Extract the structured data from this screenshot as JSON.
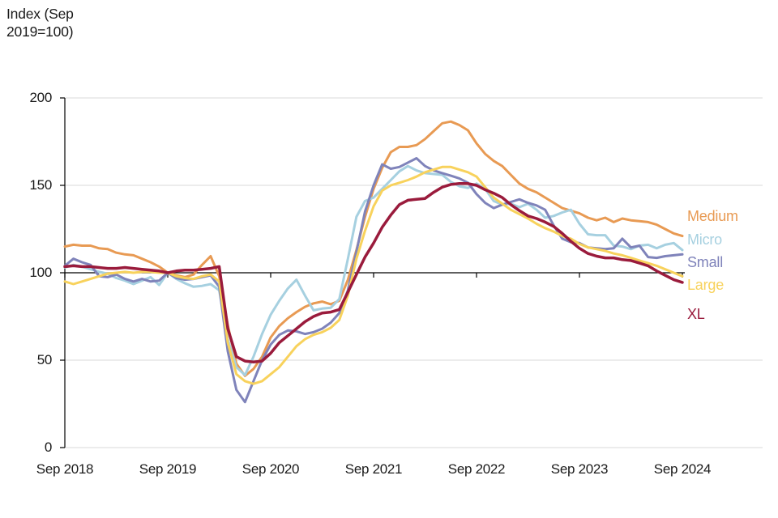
{
  "chart_data": {
    "type": "line",
    "title": "Index (Sep 2019=100)",
    "x_axis": {
      "tick_labels": [
        "Sep 2018",
        "Sep 2019",
        "Sep 2020",
        "Sep 2021",
        "Sep 2022",
        "Sep 2023",
        "Sep 2024"
      ],
      "start": "Sep 2018",
      "end": "Sep 2024",
      "step": "monthly",
      "points_per_series": 73
    },
    "y_axis": {
      "tick_labels": [
        "0",
        "50",
        "100",
        "150",
        "200"
      ],
      "ticks": [
        0,
        50,
        100,
        150,
        200
      ],
      "ylim": [
        0,
        200
      ],
      "baseline": 100
    },
    "grid": {
      "horizontal_gridlines_at": [
        0,
        50,
        150,
        200
      ],
      "black_baseline_at": 100
    },
    "legend_position": "direct labels at right end of lines",
    "series": [
      {
        "name": "Medium",
        "color": "#E89A53",
        "values": [
          115,
          116,
          115.5,
          115.5,
          114,
          113.5,
          111.5,
          110.5,
          110,
          108,
          106,
          103.5,
          100,
          98.5,
          97.5,
          99,
          104.5,
          109.5,
          98,
          70,
          48,
          41,
          45,
          52,
          63,
          69.5,
          74,
          77.5,
          80.5,
          82.5,
          83.5,
          82,
          84,
          96,
          113,
          132,
          148,
          160,
          169,
          172,
          172,
          173,
          176.5,
          181,
          185.5,
          186.5,
          184.5,
          181.5,
          174,
          168,
          164,
          161,
          156,
          151,
          148,
          146,
          143,
          140,
          137,
          135.5,
          134,
          131.5,
          130,
          131.5,
          129,
          131,
          130,
          129.5,
          129,
          127.5,
          125,
          122.5,
          121
        ]
      },
      {
        "name": "Micro",
        "color": "#A6D0E0",
        "values": [
          103,
          104.5,
          103.5,
          102,
          100.5,
          99.5,
          97,
          95.5,
          93.5,
          95.5,
          97.5,
          93,
          100,
          96.5,
          94,
          92,
          92.5,
          93.5,
          90,
          62,
          46,
          41.5,
          52,
          65,
          76,
          84,
          91,
          96,
          87,
          78.5,
          79.5,
          80,
          85,
          108,
          132,
          141,
          143,
          148,
          153,
          158,
          161,
          158.5,
          157,
          156.5,
          156,
          152,
          149.5,
          148.5,
          151,
          148,
          141,
          139,
          139.5,
          137.5,
          139.5,
          136,
          131.5,
          132.5,
          134.5,
          136,
          128,
          122,
          121.5,
          121.5,
          115.5,
          115,
          113.5,
          115.5,
          116,
          114,
          116,
          117,
          113
        ]
      },
      {
        "name": "Small",
        "color": "#7F83BA",
        "values": [
          104,
          108,
          106,
          104.5,
          98,
          97.5,
          99,
          96.5,
          95,
          96.5,
          95,
          95.5,
          100,
          97,
          96,
          96.5,
          97.5,
          98.5,
          92,
          55,
          33,
          26,
          38,
          50,
          59,
          64.5,
          67,
          66.5,
          65,
          66,
          68,
          71.5,
          77,
          90,
          112,
          135,
          150,
          162,
          159.5,
          160.5,
          163,
          165.5,
          161,
          158.5,
          157,
          155.5,
          154,
          151.5,
          145,
          140,
          137,
          139,
          140.5,
          142,
          140,
          138.5,
          136,
          127,
          119.5,
          117.5,
          117,
          114.5,
          114,
          113.5,
          114,
          119.5,
          114.5,
          115.5,
          109,
          108.5,
          109.5,
          110,
          110.5
        ]
      },
      {
        "name": "Large",
        "color": "#F8D25C",
        "values": [
          95,
          93.5,
          95,
          96.5,
          98,
          99.5,
          100,
          100.5,
          100,
          100.5,
          100.5,
          100,
          100,
          98,
          97,
          96.5,
          98,
          99,
          95,
          60,
          42,
          38,
          36.5,
          38,
          42,
          46,
          52,
          58,
          62,
          64.5,
          66,
          68.5,
          73,
          87,
          108,
          124,
          138,
          147,
          150,
          151.5,
          153,
          155,
          157.5,
          159,
          160.5,
          160.5,
          159,
          157.5,
          155,
          149,
          143,
          139.5,
          136,
          133.5,
          131,
          128,
          125.5,
          123.5,
          121,
          119.5,
          116.5,
          114.5,
          113.5,
          112.5,
          111,
          110,
          108.5,
          107,
          105.5,
          104,
          102,
          100,
          98
        ]
      },
      {
        "name": "XL",
        "color": "#9A1B3C",
        "values": [
          103.5,
          104,
          103.5,
          103.5,
          103,
          102.5,
          102.5,
          103,
          102.5,
          102,
          101.5,
          101,
          100,
          101,
          101.5,
          101.5,
          102,
          102.5,
          103.5,
          68,
          52,
          49.5,
          49,
          49.5,
          54,
          60,
          64,
          68,
          72,
          75,
          77,
          77.5,
          79,
          89,
          99,
          109,
          117,
          126,
          133,
          139,
          141.5,
          142,
          142.5,
          146,
          149,
          150.5,
          151,
          151,
          150,
          147.5,
          145.5,
          143,
          139,
          135.5,
          132.5,
          131,
          129,
          126.5,
          122.5,
          118,
          114,
          111,
          109.5,
          108.5,
          108.5,
          107.5,
          107,
          105.5,
          104,
          101,
          98.5,
          96,
          94.5
        ]
      }
    ]
  }
}
